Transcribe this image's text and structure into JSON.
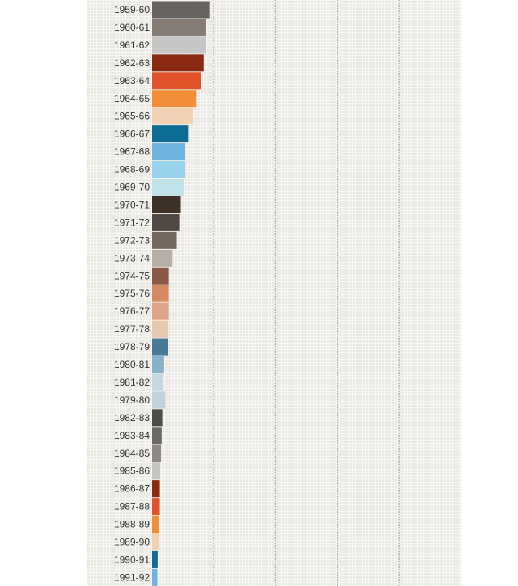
{
  "chart_data": {
    "type": "bar",
    "orientation": "horizontal",
    "grid": true,
    "xlim": [
      0,
      100
    ],
    "categories": [
      "1959-60",
      "1960-61",
      "1961-62",
      "1962-63",
      "1963-64",
      "1964-65",
      "1965-66",
      "1966-67",
      "1967-68",
      "1968-69",
      "1969-70",
      "1970-71",
      "1971-72",
      "1972-73",
      "1973-74",
      "1974-75",
      "1975-76",
      "1976-77",
      "1977-78",
      "1978-79",
      "1980-81",
      "1981-82",
      "1979-80",
      "1982-83",
      "1983-84",
      "1984-85",
      "1985-86",
      "1986-87",
      "1987-88",
      "1988-89",
      "1989-90",
      "1990-91",
      "1991-92"
    ],
    "values": [
      18.5,
      17.3,
      17.3,
      16.7,
      15.7,
      14.2,
      13.4,
      11.6,
      10.6,
      10.6,
      10.2,
      9.3,
      8.8,
      8.0,
      6.6,
      5.4,
      5.4,
      5.4,
      5.0,
      5.0,
      3.9,
      3.5,
      4.3,
      3.3,
      3.1,
      2.9,
      2.6,
      2.5,
      2.5,
      2.3,
      2.2,
      1.8,
      1.7
    ],
    "colors": [
      "#666360",
      "#857c75",
      "#c6c6c6",
      "#8a2a13",
      "#e0532a",
      "#f28e38",
      "#f2d2b4",
      "#0d6b94",
      "#6fb4df",
      "#97d1ec",
      "#c0e2e8",
      "#3e3228",
      "#514843",
      "#756860",
      "#b4aea5",
      "#8a5646",
      "#d68a62",
      "#dea28a",
      "#e8c8ac",
      "#477a98",
      "#88b2cc",
      "#c5d8e0",
      "#c0d2da",
      "#4e4c4b",
      "#6c6a68",
      "#8e8883",
      "#c4c4c4",
      "#8a2a13",
      "#e0532a",
      "#f28e38",
      "#f2d2b4",
      "#0d6b94",
      "#6fb4df"
    ]
  }
}
